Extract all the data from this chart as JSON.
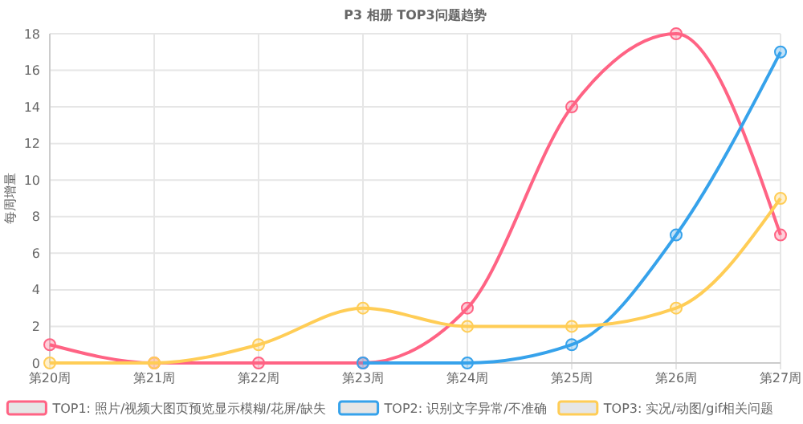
{
  "chart_data": {
    "type": "line",
    "title": "P3 相册 TOP3问题趋势",
    "ylabel": "每周增量",
    "categories": [
      "第20周",
      "第21周",
      "第22周",
      "第23周",
      "第24周",
      "第25周",
      "第26周",
      "第27周"
    ],
    "series": [
      {
        "name": "TOP1: 照片/视频大图页预览显示模糊/花屏/缺失",
        "color": "#ff6384",
        "values": [
          1,
          0,
          0,
          0,
          3,
          14,
          18,
          7
        ]
      },
      {
        "name": "TOP2: 识别文字异常/不准确",
        "color": "#36a2eb",
        "values": [
          null,
          null,
          null,
          0,
          0,
          1,
          7,
          17
        ]
      },
      {
        "name": "TOP3: 实况/动图/gif相关问题",
        "color": "#ffcd56",
        "values": [
          0,
          0,
          1,
          3,
          2,
          2,
          3,
          9
        ]
      }
    ],
    "ylim": [
      0,
      18
    ],
    "yticks": [
      0,
      2,
      4,
      6,
      8,
      10,
      12,
      14,
      16,
      18
    ],
    "grid": true,
    "legend": "bottom",
    "marker": "circle",
    "line_style": "solid"
  }
}
